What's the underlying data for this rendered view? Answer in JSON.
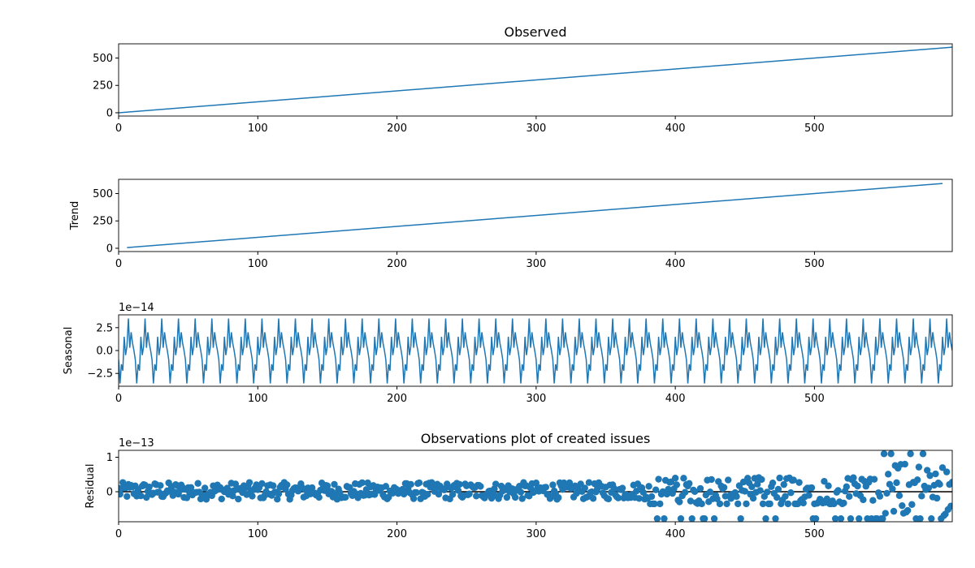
{
  "chart_data": [
    {
      "type": "line",
      "title": "Observed",
      "xlabel": "",
      "ylabel": "",
      "xlim": [
        0,
        599
      ],
      "ylim": [
        -30,
        630
      ],
      "xticks": [
        0,
        100,
        200,
        300,
        400,
        500
      ],
      "yticks": [
        0,
        250,
        500
      ],
      "ytick_labels": [
        "0",
        "250",
        "500"
      ],
      "offset_label": "",
      "grid": false,
      "series": [
        {
          "values": [
            [
              0,
              0
            ],
            [
              599,
              599
            ]
          ]
        }
      ]
    },
    {
      "type": "line",
      "title": "",
      "xlabel": "",
      "ylabel": "Trend",
      "xlim": [
        0,
        599
      ],
      "ylim": [
        -30,
        630
      ],
      "xticks": [
        0,
        100,
        200,
        300,
        400,
        500
      ],
      "yticks": [
        0,
        250,
        500
      ],
      "ytick_labels": [
        "0",
        "250",
        "500"
      ],
      "offset_label": "",
      "grid": false,
      "series": [
        {
          "values": [
            [
              6,
              6
            ],
            [
              592,
              592
            ]
          ]
        }
      ]
    },
    {
      "type": "line",
      "title": "",
      "xlabel": "",
      "ylabel": "Seasonal",
      "xlim": [
        0,
        599
      ],
      "ylim": [
        -3.9,
        3.9
      ],
      "xticks": [
        0,
        100,
        200,
        300,
        400,
        500
      ],
      "yticks": [
        -2.5,
        0,
        2.5
      ],
      "ytick_labels": [
        "−2.5",
        "0.0",
        "2.5"
      ],
      "offset_label": "1e−14",
      "grid": false,
      "period": 12,
      "pattern": [
        -1.0,
        -3.6,
        -1.5,
        -2.2,
        1.5,
        -0.5,
        0.5,
        3.5,
        0.3,
        2.0,
        0.8,
        0.0
      ],
      "series": [
        {
          "x_range": [
            0,
            599
          ]
        }
      ]
    },
    {
      "type": "scatter",
      "title": "Observations plot of created issues",
      "xlabel": "",
      "ylabel": "Residual",
      "xlim": [
        0,
        599
      ],
      "ylim": [
        -0.87,
        1.2
      ],
      "xticks": [
        0,
        100,
        200,
        300,
        400,
        500
      ],
      "yticks": [
        0,
        1
      ],
      "ytick_labels": [
        "0",
        "1"
      ],
      "offset_label": "1e−13",
      "grid": false,
      "zero_line": true,
      "series": [
        {
          "x_range": [
            0,
            599
          ],
          "spread": [
            [
              0,
              0.35
            ],
            [
              380,
              0.55
            ],
            [
              550,
              1.1
            ]
          ]
        }
      ]
    }
  ]
}
